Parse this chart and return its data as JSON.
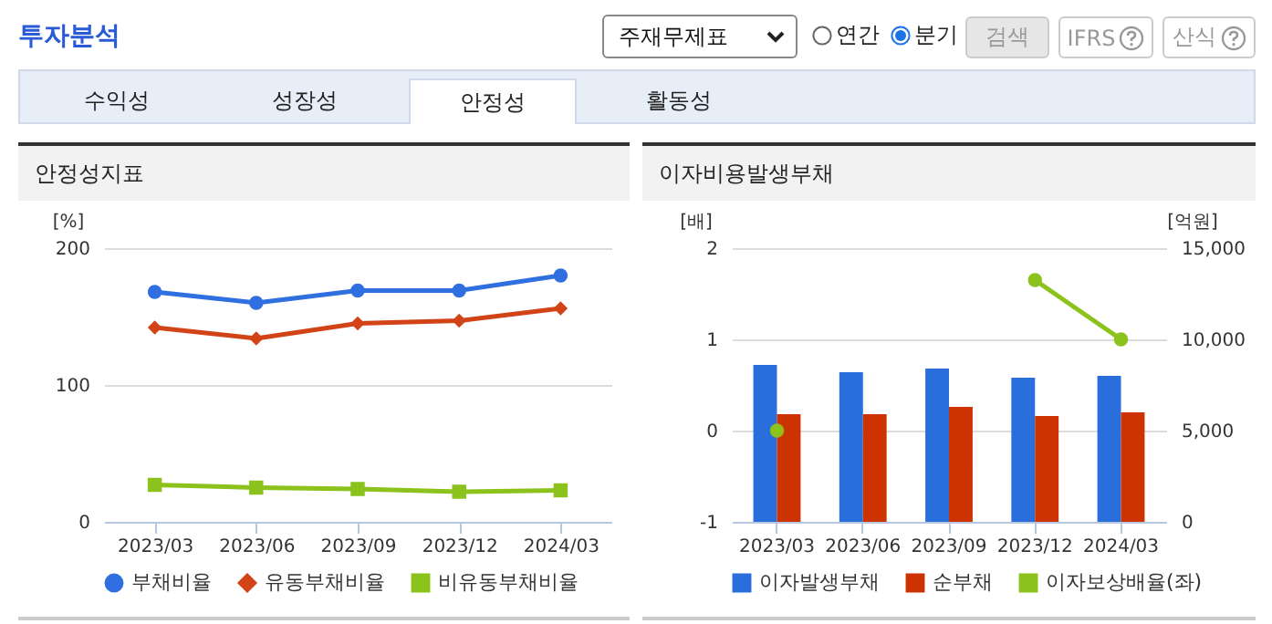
{
  "chart_data": [
    {
      "type": "other",
      "title": "투자분석",
      "annotations": [
        "주재무제표",
        "연간",
        "분기",
        "검색",
        "IFRS",
        "산식",
        "수익성",
        "성장성",
        "안정성",
        "활동성"
      ]
    },
    {
      "type": "line",
      "title": "안정성지표",
      "ylabel": "[%]",
      "categories": [
        "2023/03",
        "2023/06",
        "2023/09",
        "2023/12",
        "2024/03"
      ],
      "ylim": [
        0,
        200
      ],
      "yticks": [
        0,
        100,
        200
      ],
      "grid": "y",
      "legend": "bottom",
      "series": [
        {
          "name": "부채비율",
          "color": "#2f6fe0",
          "marker": "circle",
          "values": [
            168,
            160,
            169,
            169,
            180
          ]
        },
        {
          "name": "유동부채비율",
          "color": "#d24417",
          "marker": "diamond",
          "values": [
            142,
            134,
            145,
            147,
            156
          ]
        },
        {
          "name": "비유동부채비율",
          "color": "#8cc21c",
          "marker": "square",
          "values": [
            27,
            25,
            24,
            22,
            23
          ]
        }
      ]
    },
    {
      "type": "bar",
      "title": "이자비용발생부채",
      "ylabel": "[배]",
      "y2label": "[억원]",
      "categories": [
        "2023/03",
        "2023/06",
        "2023/09",
        "2023/12",
        "2024/03"
      ],
      "ylim": [
        -1,
        2
      ],
      "yticks": [
        -1,
        0,
        1,
        2
      ],
      "y2lim": [
        0,
        15000
      ],
      "y2ticks": [
        0,
        {
          "value": 5000,
          "label": "5,000"
        },
        {
          "value": 10000,
          "label": "10,000"
        },
        {
          "value": 15000,
          "label": "15,000"
        }
      ],
      "grid": "y",
      "legend": "bottom",
      "series": [
        {
          "name": "이자발생부채",
          "color": "#2a6edb",
          "axis": "y2",
          "values": [
            8600,
            8200,
            8400,
            7900,
            8000
          ]
        },
        {
          "name": "순부채",
          "color": "#cc3300",
          "axis": "y2",
          "values": [
            5900,
            5900,
            6300,
            5800,
            6000
          ]
        },
        {
          "name": "이자보상배율(좌)",
          "color": "#8cc21c",
          "type": "line",
          "marker": "circle",
          "axis": "y",
          "values": [
            0,
            null,
            null,
            1.65,
            1.0
          ]
        }
      ]
    }
  ]
}
